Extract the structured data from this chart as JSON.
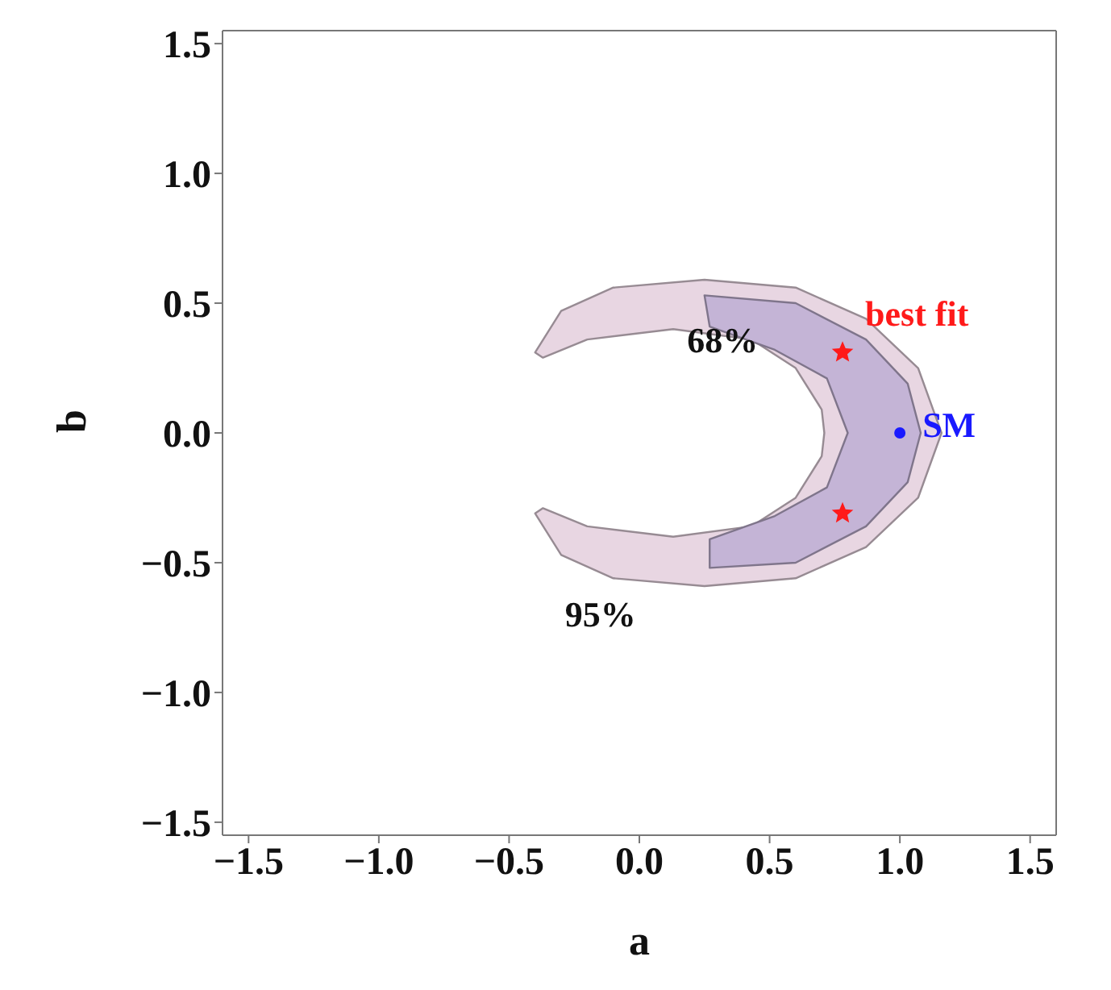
{
  "chart_data": {
    "type": "scatter",
    "xlabel": "a",
    "ylabel": "b",
    "xlim": [
      -1.6,
      1.6
    ],
    "ylim": [
      -1.55,
      1.55
    ],
    "xticks": [
      -1.5,
      {
        "value": -1.0,
        "label": "−1.0"
      },
      -0.5,
      {
        "value": 0.0,
        "label": "0.0"
      },
      0.5,
      {
        "value": 1.0,
        "label": "1.0"
      },
      1.5
    ],
    "yticks": [
      -1.5,
      {
        "value": -1.0,
        "label": "−1.0"
      },
      -0.5,
      {
        "value": 0.0,
        "label": "0.0"
      },
      0.5,
      {
        "value": 1.0,
        "label": "1.0"
      },
      1.5
    ],
    "series": [
      {
        "type": "area",
        "name": "95%",
        "color": "#e8d6e2",
        "x": [
          -0.4,
          -0.3,
          -0.1,
          0.25,
          0.6,
          0.87,
          1.07,
          1.16,
          1.07,
          0.87,
          0.6,
          0.25,
          -0.1,
          -0.3,
          -0.4,
          -0.37,
          -0.2,
          0.13,
          0.43,
          0.6,
          0.7,
          0.71,
          0.7,
          0.6,
          0.43,
          0.13,
          -0.2,
          -0.37,
          -0.4
        ],
        "values": [
          0.31,
          0.47,
          0.56,
          0.59,
          0.56,
          0.44,
          0.25,
          0.0,
          -0.25,
          -0.44,
          -0.56,
          -0.59,
          -0.56,
          -0.47,
          -0.31,
          -0.29,
          -0.36,
          -0.4,
          -0.36,
          -0.25,
          -0.09,
          0.0,
          0.09,
          0.25,
          0.36,
          0.4,
          0.36,
          0.29,
          0.31
        ]
      },
      {
        "type": "area",
        "name": "68%",
        "color": "#c4b4d6",
        "x": [
          0.27,
          0.25,
          0.6,
          0.87,
          1.03,
          1.08,
          1.03,
          0.87,
          0.6,
          0.27,
          0.27,
          0.52,
          0.72,
          0.8,
          0.72,
          0.52,
          0.27
        ],
        "values": [
          0.41,
          0.53,
          0.5,
          0.36,
          0.19,
          0.0,
          -0.19,
          -0.36,
          -0.5,
          -0.52,
          -0.41,
          -0.32,
          -0.21,
          0.0,
          0.21,
          0.32,
          0.41
        ]
      },
      {
        "name": "best fit",
        "color": "#ff1a1a",
        "marker": "star",
        "x": [
          0.78,
          0.78
        ],
        "values": [
          0.31,
          -0.31
        ]
      },
      {
        "name": "SM",
        "color": "#1a1aff",
        "marker": "circle",
        "x": [
          1.0
        ],
        "values": [
          0.0
        ]
      }
    ]
  }
}
